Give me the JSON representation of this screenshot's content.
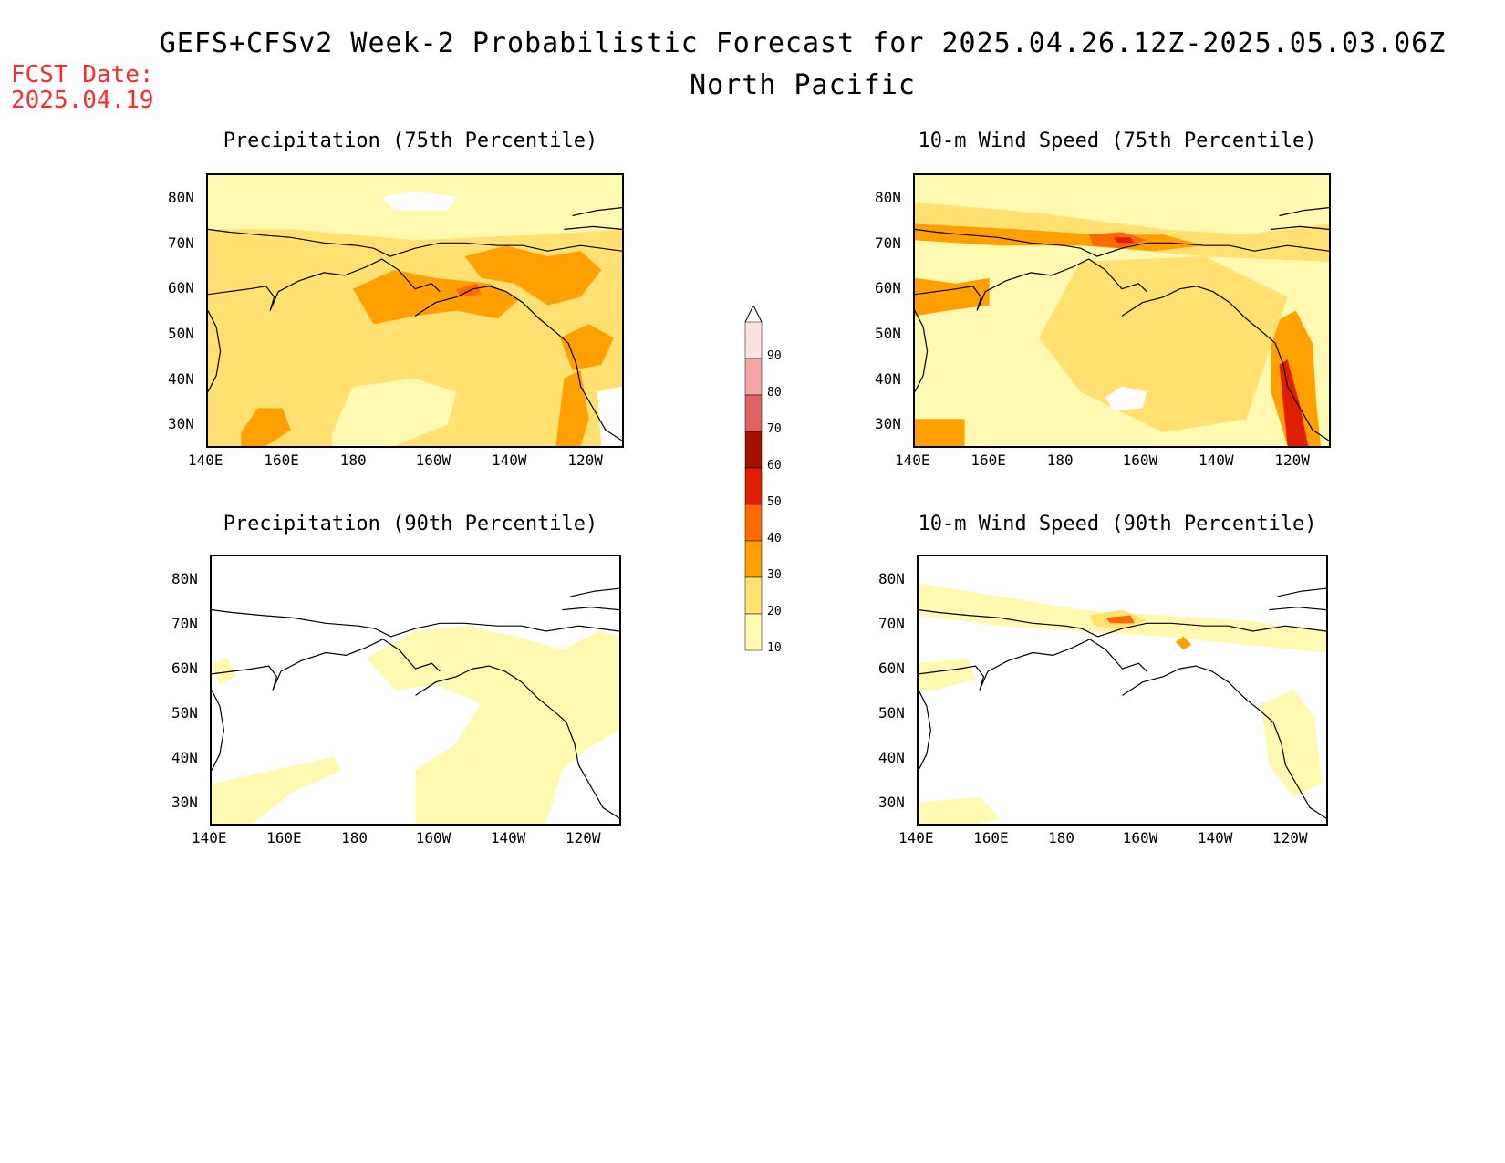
{
  "header": {
    "title": "GEFS+CFSv2 Week-2 Probabilistic Forecast for 2025.04.26.12Z-2025.05.03.06Z",
    "subtitle": "North Pacific",
    "fcst_label": "FCST Date:",
    "fcst_date": "2025.04.19"
  },
  "axes": {
    "lon_labels": [
      "140E",
      "160E",
      "180",
      "160W",
      "140W",
      "120W"
    ],
    "lat_labels": [
      "80N",
      "70N",
      "60N",
      "50N",
      "40N",
      "30N"
    ]
  },
  "panels": [
    {
      "title": "Precipitation (75th Percentile)"
    },
    {
      "title": "10-m Wind Speed (75th Percentile)"
    },
    {
      "title": "Precipitation (90th Percentile)"
    },
    {
      "title": "10-m Wind Speed (90th Percentile)"
    }
  ],
  "colorbar": {
    "levels": [
      "90",
      "80",
      "70",
      "60",
      "50",
      "40",
      "30",
      "20",
      "10"
    ],
    "colors": [
      "#fde0e0",
      "#f4a6a6",
      "#e06262",
      "#a50f00",
      "#e01e00",
      "#ff6a00",
      "#ffa000",
      "#ffe070",
      "#fff8b0"
    ]
  },
  "colors": {
    "fcst": "#ff2a2a",
    "fill_light": "#fff8b0",
    "fill_mid": "#ffe070",
    "fill_orange": "#ffa000",
    "fill_dark_orange": "#ff6a00",
    "fill_red": "#e01e00",
    "fill_dark_red": "#a50f00"
  }
}
